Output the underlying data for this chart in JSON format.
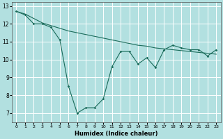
{
  "xlabel": "Humidex (Indice chaleur)",
  "ylabel": "",
  "background_color": "#b2e0e0",
  "grid_color": "#ffffff",
  "line_color": "#1a6b5a",
  "xlim": [
    -0.5,
    23.5
  ],
  "ylim": [
    6.5,
    13.2
  ],
  "x_ticks": [
    0,
    1,
    2,
    3,
    4,
    5,
    6,
    7,
    8,
    9,
    10,
    11,
    12,
    13,
    14,
    15,
    16,
    17,
    18,
    19,
    20,
    21,
    22,
    23
  ],
  "y_ticks": [
    7,
    8,
    9,
    10,
    11,
    12,
    13
  ],
  "line1_x": [
    0,
    1,
    2,
    3,
    4,
    5,
    6,
    7,
    8,
    9,
    10,
    11,
    12,
    13,
    14,
    15,
    16,
    17,
    18,
    19,
    20,
    21,
    22,
    23
  ],
  "line1_y": [
    12.7,
    12.5,
    12.0,
    12.0,
    11.8,
    11.1,
    8.5,
    7.0,
    7.3,
    7.3,
    7.8,
    9.6,
    10.45,
    10.45,
    9.75,
    10.1,
    9.55,
    10.55,
    10.8,
    10.65,
    10.55,
    10.55,
    10.2,
    10.55
  ],
  "line2_x": [
    0,
    1,
    2,
    3,
    4,
    5,
    6,
    7,
    8,
    9,
    10,
    11,
    12,
    13,
    14,
    15,
    16,
    17,
    18,
    19,
    20,
    21,
    22,
    23
  ],
  "line2_y": [
    12.7,
    12.55,
    12.3,
    12.05,
    11.9,
    11.75,
    11.6,
    11.5,
    11.4,
    11.3,
    11.2,
    11.1,
    11.0,
    10.9,
    10.8,
    10.75,
    10.65,
    10.6,
    10.55,
    10.5,
    10.45,
    10.4,
    10.35,
    10.3
  ]
}
